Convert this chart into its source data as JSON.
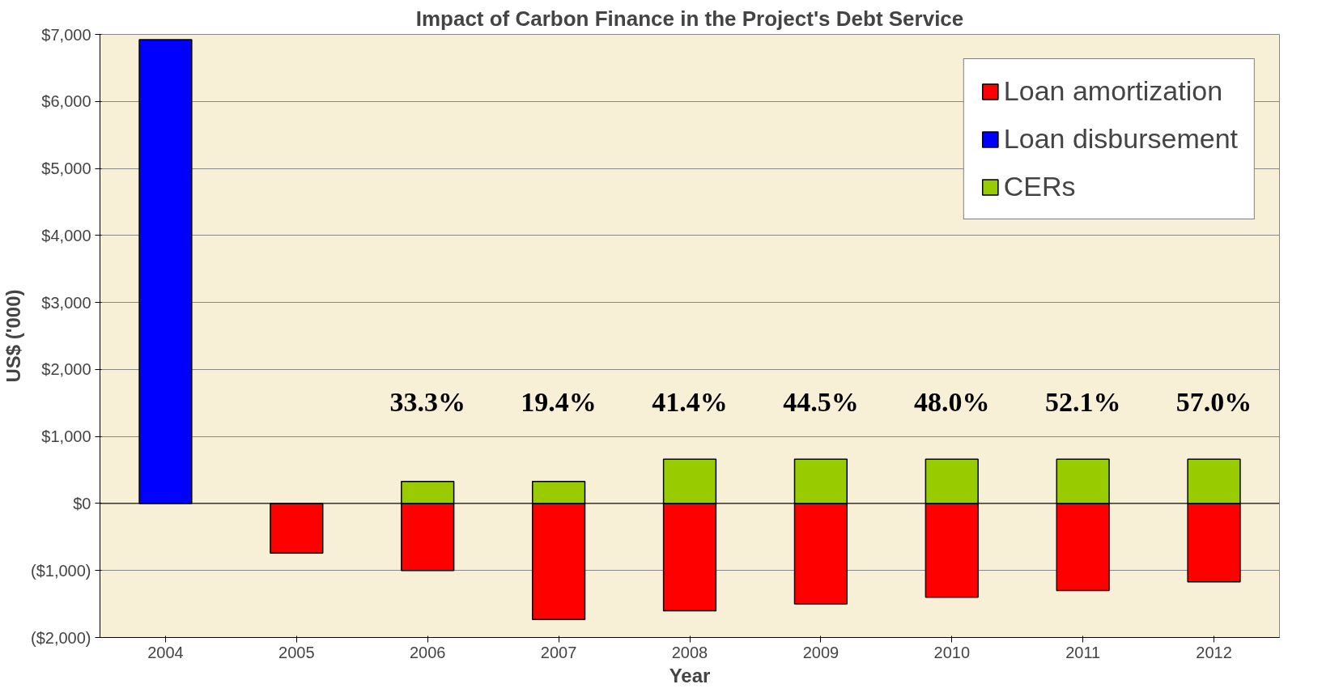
{
  "chart_data": {
    "type": "bar",
    "title": "Impact of Carbon Finance in the Project's Debt Service",
    "xlabel": "Year",
    "ylabel": "US$ ('000)",
    "categories": [
      "2004",
      "2005",
      "2006",
      "2007",
      "2008",
      "2009",
      "2010",
      "2011",
      "2012"
    ],
    "stacked": true,
    "series": [
      {
        "name": "Loan amortization",
        "color": "#ff0000",
        "values": [
          null,
          -740,
          -1000,
          -1730,
          -1600,
          -1500,
          -1400,
          -1300,
          -1170
        ]
      },
      {
        "name": "Loan disbursement",
        "color": "#0000ff",
        "values": [
          6920,
          null,
          null,
          null,
          null,
          null,
          null,
          null,
          null
        ]
      },
      {
        "name": "CERs",
        "color": "#99cc00",
        "values": [
          null,
          null,
          330,
          330,
          660,
          660,
          660,
          660,
          660
        ]
      }
    ],
    "ylim": [
      -2000,
      7000
    ],
    "yticks": [
      {
        "value": -2000,
        "label": "($2,000)"
      },
      {
        "value": -1000,
        "label": "($1,000)"
      },
      {
        "value": 0,
        "label": "$0"
      },
      {
        "value": 1000,
        "label": "$1,000"
      },
      {
        "value": 2000,
        "label": "$2,000"
      },
      {
        "value": 3000,
        "label": "$3,000"
      },
      {
        "value": 4000,
        "label": "$4,000"
      },
      {
        "value": 5000,
        "label": "$5,000"
      },
      {
        "value": 6000,
        "label": "$6,000"
      },
      {
        "value": 7000,
        "label": "$7,000"
      }
    ],
    "grid": "y",
    "legend": "top right",
    "annotations": [
      "33.3%",
      "19.4%",
      "41.4%",
      "44.5%",
      "48.0%",
      "52.1%",
      "57.0%"
    ]
  }
}
